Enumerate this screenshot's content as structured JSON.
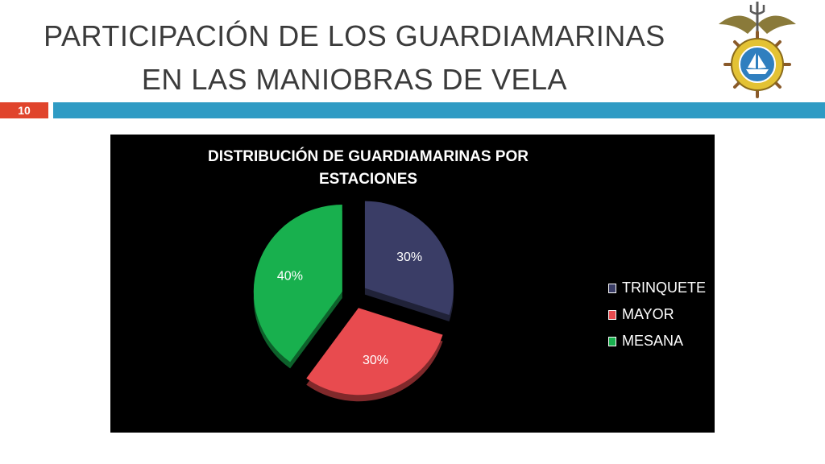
{
  "slide": {
    "title_line1": "PARTICIPACIÓN DE LOS GUARDIAMARINAS",
    "title_line2": "EN LAS MANIOBRAS DE VELA",
    "page_number": "10"
  },
  "colors": {
    "accent_red": "#e0442c",
    "accent_blue": "#2f9bc4",
    "chart_background": "#000000"
  },
  "emblem": {
    "icon": "naval-academy-emblem-icon"
  },
  "chart_data": {
    "type": "pie",
    "title": "DISTRIBUCIÓN DE GUARDIAMARINAS POR ESTACIONES",
    "categories": [
      "TRINQUETE",
      "MAYOR",
      "MESANA"
    ],
    "values": [
      30,
      30,
      40
    ],
    "value_labels": [
      "30%",
      "30%",
      "40%"
    ],
    "colors": [
      "#3a3d66",
      "#e84b4f",
      "#18b04e"
    ],
    "exploded": true,
    "style": "3d",
    "legend_position": "right"
  }
}
